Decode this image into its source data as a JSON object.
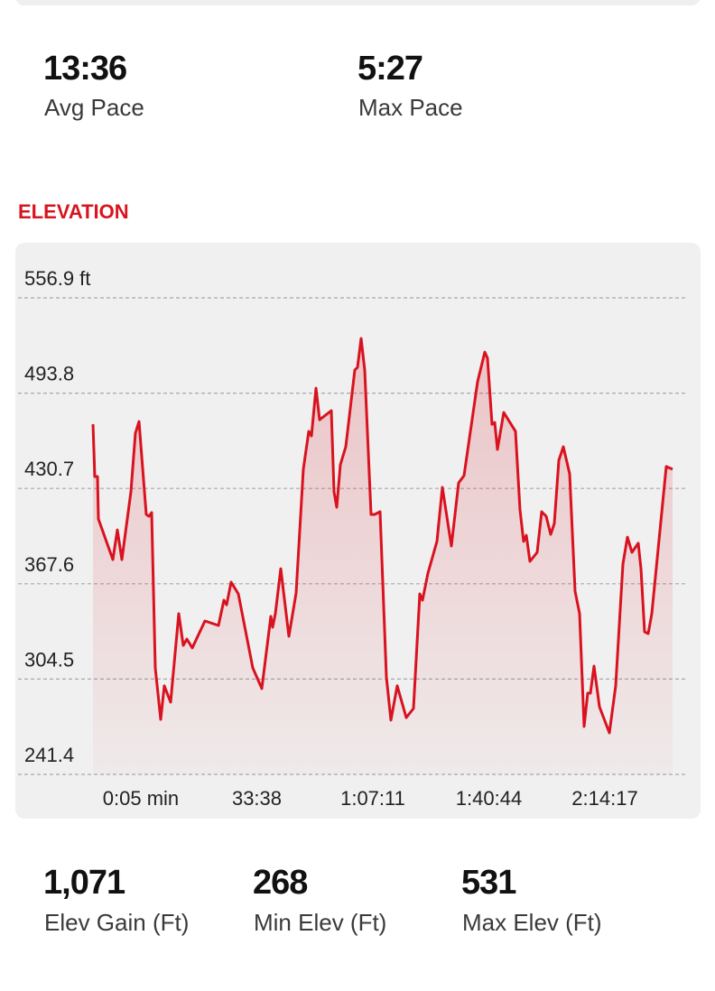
{
  "stats_top": [
    {
      "value": "13:36",
      "label": "Avg Pace"
    },
    {
      "value": "5:27",
      "label": "Max Pace"
    }
  ],
  "section_title": "ELEVATION",
  "chart_data": {
    "type": "line",
    "x": [
      -825,
      -794,
      -747,
      -731,
      -481,
      -402,
      -324,
      -167,
      -89,
      -26,
      99,
      146,
      193,
      256,
      350,
      412,
      522,
      663,
      741,
      804,
      898,
      1117,
      1352,
      1446,
      1493,
      1572,
      1697,
      1947,
      2104,
      2261,
      2292,
      2339,
      2433,
      2574,
      2699,
      2825,
      2919,
      2966,
      3044,
      3107,
      3310,
      3357,
      3404,
      3467,
      3561,
      3718,
      3765,
      3827,
      3890,
      4000,
      4062,
      4156,
      4266,
      4344,
      4454,
      4611,
      4736,
      4845,
      4892,
      4986,
      5143,
      5237,
      5394,
      5519,
      5613,
      5848,
      5973,
      6020,
      6099,
      6146,
      6193,
      6302,
      6506,
      6584,
      6647,
      6694,
      6757,
      6882,
      6960,
      7039,
      7117,
      7180,
      7258,
      7336,
      7446,
      7540,
      7618,
      7697,
      7759,
      7806,
      7869,
      7963,
      8135,
      8245,
      8370,
      8448,
      8527,
      8636,
      8683,
      8746,
      8809,
      8871,
      9122,
      9232
    ],
    "series": [
      {
        "name": "Elevation",
        "color": "#d9121f",
        "values": [
          473.2,
          438.6,
          438.6,
          410.5,
          383.6,
          403.3,
          383.6,
          428.4,
          467.3,
          475.0,
          413.5,
          412.3,
          414.7,
          311.9,
          277.8,
          300.0,
          289.2,
          347.8,
          326.8,
          331.0,
          325.1,
          343.0,
          340.0,
          356.7,
          353.7,
          368.7,
          360.9,
          311.9,
          298.2,
          346.0,
          338.8,
          347.8,
          377.6,
          332.8,
          361.5,
          443.4,
          468.5,
          465.5,
          497.1,
          476.2,
          482.2,
          428.4,
          418.3,
          446.4,
          458.3,
          509.1,
          510.9,
          530.0,
          509.1,
          413.5,
          413.5,
          415.3,
          305.9,
          277.3,
          300.0,
          279.0,
          285.0,
          360.9,
          356.7,
          374.6,
          395.6,
          431.4,
          392.6,
          434.4,
          439.2,
          501.3,
          521.0,
          516.9,
          473.2,
          474.4,
          456.5,
          481.0,
          468.5,
          416.5,
          395.6,
          399.7,
          382.4,
          388.4,
          415.3,
          412.3,
          400.3,
          407.5,
          449.3,
          458.3,
          440.4,
          362.7,
          347.8,
          273.1,
          295.2,
          295.2,
          313.1,
          286.2,
          268.9,
          300.0,
          380.6,
          398.5,
          388.4,
          394.4,
          377.6,
          335.8,
          334.6,
          347.8,
          445.2,
          443.4
        ]
      }
    ],
    "xlim": [
      -825,
      9232
    ],
    "xticks": [
      {
        "value": 5,
        "label": "0:05 min"
      },
      {
        "value": 2018,
        "label": "33:38"
      },
      {
        "value": 4031,
        "label": "1:07:11"
      },
      {
        "value": 6044,
        "label": "1:40:44"
      },
      {
        "value": 8057,
        "label": "2:14:17"
      }
    ],
    "ylim": [
      241.4,
      556.9
    ],
    "yticks": [
      241.4,
      304.5,
      367.6,
      430.7,
      493.8,
      {
        "value": 556.9,
        "label": "556.9 ft"
      }
    ],
    "grid": true
  },
  "stats_bottom": [
    {
      "value": "1,071",
      "label": "Elev Gain (Ft)"
    },
    {
      "value": "268",
      "label": "Min Elev (Ft)"
    },
    {
      "value": "531",
      "label": "Max Elev (Ft)"
    }
  ]
}
